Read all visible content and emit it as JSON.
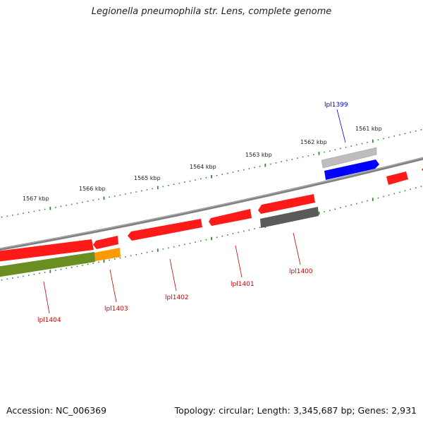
{
  "title": "Legionella pneumophila str. Lens, complete genome",
  "accession": "Accession: NC_006369",
  "summary": "Topology: circular; Length: 3,345,687 bp; Genes: 2,931",
  "ticks": [
    "1567 kbp",
    "1566 kbp",
    "1565 kbp",
    "1564 kbp",
    "1563 kbp",
    "1562 kbp",
    "1561 kbp"
  ],
  "colors": {
    "backbone": "#888888",
    "tick": "#2e8b2e",
    "forward_gene": "#ff1a1a",
    "reverse_gene": "#ff1a1a",
    "highlight_gene": "#0000ff",
    "pseudo_light": "#bbbbbb",
    "pseudo_dark": "#555555",
    "olive": "#6b8e23",
    "orange": "#ff9900",
    "label_red": "#cc0000",
    "label_blue": "#0000cc"
  },
  "gene_labels": [
    {
      "id": "lpl1399",
      "text": "lpl1399",
      "color": "label_blue"
    },
    {
      "id": "lpl1400",
      "text": "lpl1400",
      "color": "label_red"
    },
    {
      "id": "lpl1401",
      "text": "lpl1401",
      "color": "label_red"
    },
    {
      "id": "lpl1402",
      "text": "lpl1402",
      "color": "label_red"
    },
    {
      "id": "lpl1403",
      "text": "lpl1403",
      "color": "label_red"
    },
    {
      "id": "lpl1404",
      "text": "lpl1404",
      "color": "label_red"
    }
  ]
}
